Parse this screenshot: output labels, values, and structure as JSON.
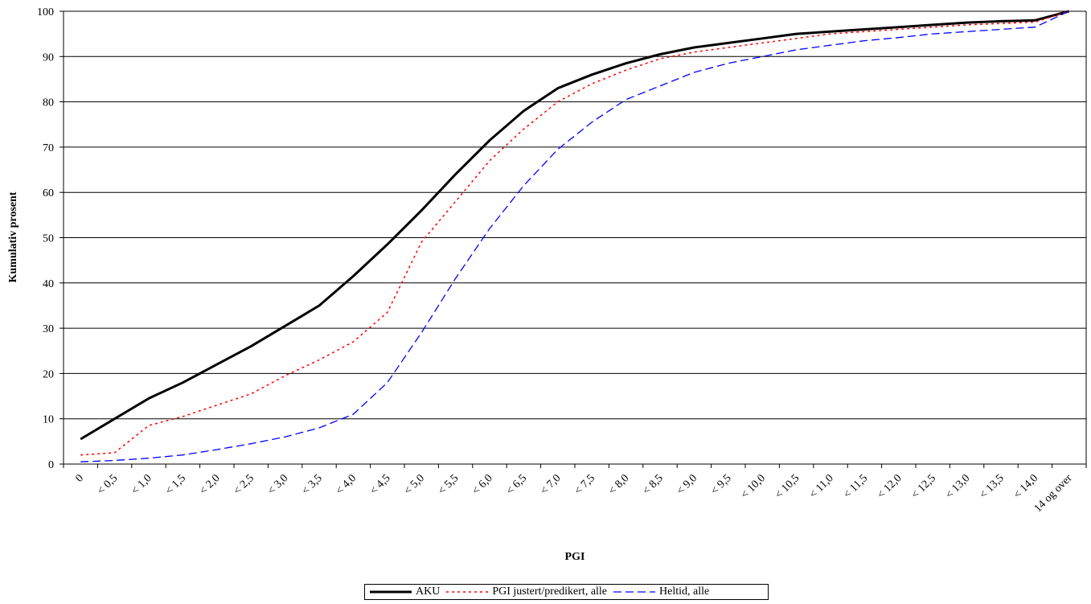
{
  "chart_data": {
    "type": "line",
    "xlabel": "PGI",
    "ylabel": "Kumulativ prosent",
    "ylim": [
      0,
      100
    ],
    "yticks": [
      0,
      10,
      20,
      30,
      40,
      50,
      60,
      70,
      80,
      90,
      100
    ],
    "grid": "horizontal",
    "legend_position": "bottom",
    "categories": [
      "0",
      "< 0,5",
      "< 1,0",
      "< 1,5",
      "< 2,0",
      "< 2,5",
      "< 3,0",
      "< 3,5",
      "< 4,0",
      "< 4,5",
      "< 5,0",
      "< 5,5",
      "< 6,0",
      "< 6,5",
      "< 7,0",
      "< 7,5",
      "< 8,0",
      "< 8,5",
      "< 9,0",
      "< 9,5",
      "< 10,0",
      "< 10,5",
      "< 11,0",
      "< 11,5",
      "< 12,0",
      "< 12,5",
      "< 13,0",
      "< 13,5",
      "< 14,0",
      "14 og over"
    ],
    "series": [
      {
        "name": "AKU",
        "color": "#000000",
        "style": "solid",
        "values": [
          5.5,
          10,
          14.5,
          18,
          22,
          26,
          30.5,
          35,
          41.5,
          48.5,
          56,
          64,
          71.5,
          78,
          83,
          86,
          88.5,
          90.5,
          92,
          93,
          94,
          95,
          95.5,
          96,
          96.5,
          97,
          97.5,
          97.8,
          98,
          100
        ]
      },
      {
        "name": "PGI justert/predikert, alle",
        "color": "#ff0000",
        "style": "dotted",
        "values": [
          2,
          2.5,
          8.5,
          10.5,
          13,
          15.5,
          19.5,
          23,
          27,
          33.5,
          49,
          58,
          67,
          74,
          80,
          84,
          87,
          89.5,
          91,
          92,
          93,
          94,
          95,
          95.5,
          96,
          96.5,
          97,
          97.3,
          97.6,
          100
        ]
      },
      {
        "name": "Heltid, alle",
        "color": "#0000ff",
        "style": "dashed",
        "values": [
          0.5,
          0.8,
          1.3,
          2,
          3.2,
          4.5,
          6,
          8,
          11,
          18,
          29,
          41,
          52,
          61.5,
          69.5,
          75.5,
          80.5,
          83.5,
          86.5,
          88.5,
          90,
          91.5,
          92.5,
          93.5,
          94.2,
          95,
          95.5,
          96,
          96.5,
          100
        ]
      }
    ]
  }
}
